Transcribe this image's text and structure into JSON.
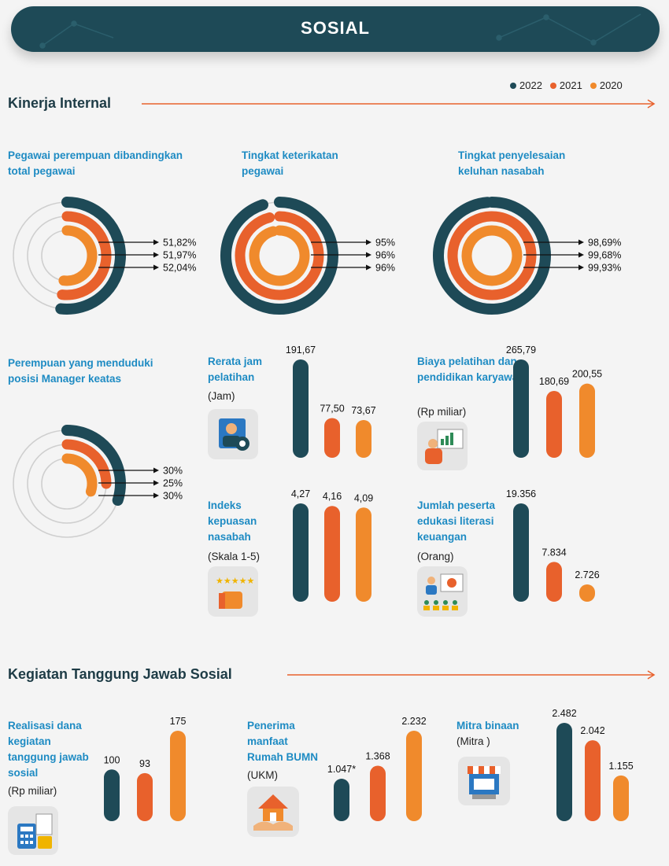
{
  "header": {
    "title": "SOSIAL"
  },
  "legend": [
    {
      "label": "2022",
      "color": "#1e4a57"
    },
    {
      "label": "2021",
      "color": "#e8612c"
    },
    {
      "label": "2020",
      "color": "#f08a2c"
    }
  ],
  "sections": {
    "internal": "Kinerja Internal",
    "csr": "Kegiatan Tanggung Jawab Sosial"
  },
  "chart_data": [
    {
      "type": "radial",
      "title": "Pegawai perempuan dibandingkan total pegawai",
      "series": [
        "2022",
        "2021",
        "2020"
      ],
      "values": [
        51.82,
        51.97,
        52.04
      ],
      "value_labels": [
        "51,82%",
        "51,97%",
        "52,04%"
      ]
    },
    {
      "type": "radial",
      "title": "Tingkat keterikatan pegawai",
      "series": [
        "2022",
        "2021",
        "2020"
      ],
      "values": [
        95,
        96,
        96
      ],
      "value_labels": [
        "95%",
        "96%",
        "96%"
      ]
    },
    {
      "type": "radial",
      "title": "Tingkat penyelesaian keluhan nasabah",
      "series": [
        "2022",
        "2021",
        "2020"
      ],
      "values": [
        98.69,
        99.68,
        99.93
      ],
      "value_labels": [
        "98,69%",
        "99,68%",
        "99,93%"
      ]
    },
    {
      "type": "radial",
      "title": "Perempuan yang menduduki posisi Manager keatas",
      "series": [
        "2022",
        "2021",
        "2020"
      ],
      "values": [
        30,
        25,
        30
      ],
      "value_labels": [
        "30%",
        "25%",
        "30%"
      ]
    },
    {
      "type": "bar",
      "title": "Rerata jam pelatihan",
      "unit": "(Jam)",
      "categories": [
        "2022",
        "2021",
        "2020"
      ],
      "values": [
        191.67,
        77.5,
        73.67
      ],
      "value_labels": [
        "191,67",
        "77,50",
        "73,67"
      ]
    },
    {
      "type": "bar",
      "title": "Biaya pelatihan dan pendidikan karyawan",
      "unit": "(Rp miliar)",
      "categories": [
        "2022",
        "2021",
        "2020"
      ],
      "values": [
        265.79,
        180.69,
        200.55
      ],
      "value_labels": [
        "265,79",
        "180,69",
        "200,55"
      ]
    },
    {
      "type": "bar",
      "title": "Indeks kepuasan nasabah",
      "unit": "(Skala 1-5)",
      "categories": [
        "2022",
        "2021",
        "2020"
      ],
      "values": [
        4.27,
        4.16,
        4.09
      ],
      "value_labels": [
        "4,27",
        "4,16",
        "4,09"
      ]
    },
    {
      "type": "bar",
      "title": "Jumlah peserta edukasi literasi keuangan",
      "unit": "(Orang)",
      "categories": [
        "2022",
        "2021",
        "2020"
      ],
      "values": [
        19356,
        7834,
        2726
      ],
      "value_labels": [
        "19.356",
        "7.834",
        "2.726"
      ]
    },
    {
      "type": "bar",
      "title": "Realisasi dana kegiatan tanggung jawab sosial",
      "unit": "(Rp miliar)",
      "categories": [
        "2022",
        "2021",
        "2020"
      ],
      "values": [
        100,
        93,
        175
      ],
      "value_labels": [
        "100",
        "93",
        "175"
      ]
    },
    {
      "type": "bar",
      "title": "Penerima manfaat Rumah BUMN",
      "unit": "(UKM)",
      "categories": [
        "2022",
        "2021",
        "2020"
      ],
      "values": [
        1047,
        1368,
        2232
      ],
      "value_labels": [
        "1.047*",
        "1.368",
        "2.232"
      ]
    },
    {
      "type": "bar",
      "title": "Mitra binaan",
      "unit": "(Mitra )",
      "categories": [
        "2022",
        "2021",
        "2020"
      ],
      "values": [
        2482,
        2042,
        1155
      ],
      "value_labels": [
        "2.482",
        "2.042",
        "1.155"
      ]
    }
  ],
  "icons": [
    "trainer-icon",
    "presentation-icon",
    "thumbs-up-stars-icon",
    "audience-seminar-icon",
    "calculator-money-icon",
    "house-handshake-icon",
    "store-icon"
  ]
}
